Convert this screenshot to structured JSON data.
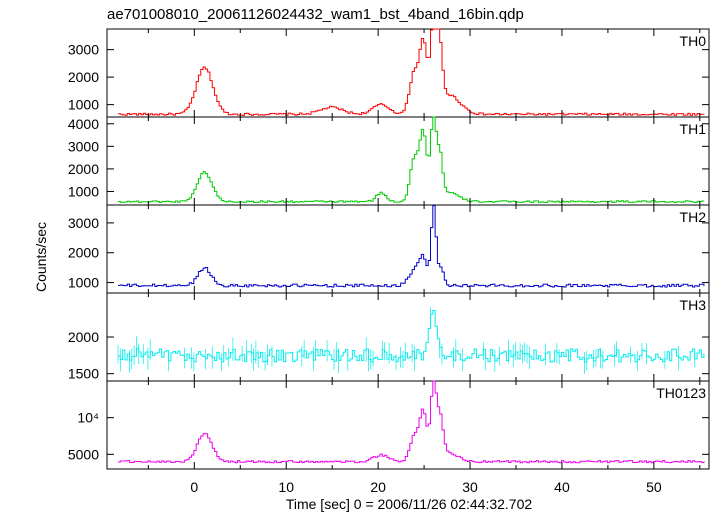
{
  "chart_data": {
    "type": "line",
    "title": "ae701008010_20061126024432_wam1_bst_4band_16bin.qdp",
    "xlabel": "Time [sec] 0 = 2006/11/26 02:44:32.702",
    "ylabel": "Counts/sec",
    "xlim": [
      -9.5,
      56
    ],
    "x_ticks": [
      0,
      10,
      20,
      30,
      40,
      50
    ],
    "x_tick_labels": [
      "0",
      "10",
      "20",
      "30",
      "40",
      "50"
    ],
    "grid": false,
    "panels": [
      {
        "name": "TH0",
        "color": "#ff0000",
        "ylim": [
          550,
          3750
        ],
        "y_ticks": [
          1000,
          2000,
          3000
        ],
        "y_tick_labels": [
          "1000",
          "2000",
          "3000"
        ],
        "baseline": 650,
        "noise": 40,
        "pulses": [
          [
            1.0,
            0.9,
            1700
          ],
          [
            14.8,
            1.2,
            250
          ],
          [
            20.2,
            0.9,
            350
          ],
          [
            23.8,
            0.5,
            1500
          ],
          [
            24.8,
            0.4,
            2500
          ],
          [
            25.9,
            0.35,
            2900
          ],
          [
            26.5,
            0.35,
            2200
          ],
          [
            27.6,
            1.2,
            700
          ]
        ]
      },
      {
        "name": "TH1",
        "color": "#00cc00",
        "ylim": [
          400,
          4300
        ],
        "y_ticks": [
          1000,
          2000,
          3000,
          4000
        ],
        "y_tick_labels": [
          "1000",
          "2000",
          "3000",
          "4000"
        ],
        "baseline": 550,
        "noise": 40,
        "pulses": [
          [
            1.0,
            0.8,
            1300
          ],
          [
            20.2,
            0.5,
            400
          ],
          [
            23.8,
            0.45,
            1900
          ],
          [
            24.8,
            0.4,
            3000
          ],
          [
            25.9,
            0.3,
            3600
          ],
          [
            26.6,
            0.3,
            1900
          ],
          [
            27.6,
            1.0,
            400
          ]
        ]
      },
      {
        "name": "TH2",
        "color": "#0000cc",
        "ylim": [
          650,
          3600
        ],
        "y_ticks": [
          1000,
          2000,
          3000
        ],
        "y_tick_labels": [
          "1000",
          "2000",
          "3000"
        ],
        "baseline": 900,
        "noise": 50,
        "pulses": [
          [
            1.0,
            0.7,
            600
          ],
          [
            23.8,
            0.6,
            500
          ],
          [
            24.8,
            0.45,
            900
          ],
          [
            25.9,
            0.25,
            2500
          ],
          [
            26.6,
            0.4,
            600
          ]
        ]
      },
      {
        "name": "TH3",
        "color": "#00eeee",
        "ylim": [
          1400,
          2600
        ],
        "y_ticks": [
          1500,
          2000
        ],
        "y_tick_labels": [
          "1500",
          "2000"
        ],
        "baseline": 1750,
        "noise": 90,
        "pulses": [
          [
            25.9,
            0.4,
            600
          ]
        ]
      },
      {
        "name": "TH0123",
        "color": "#ee00ee",
        "ylim": [
          3000,
          15000
        ],
        "y_ticks": [
          5000,
          10000
        ],
        "y_tick_labels": [
          "5000",
          "10⁴"
        ],
        "baseline": 4000,
        "noise": 150,
        "pulses": [
          [
            1.0,
            0.8,
            3800
          ],
          [
            20.2,
            0.8,
            900
          ],
          [
            23.8,
            0.45,
            3500
          ],
          [
            24.8,
            0.4,
            6800
          ],
          [
            25.9,
            0.3,
            10000
          ],
          [
            26.6,
            0.35,
            5500
          ],
          [
            27.6,
            1.0,
            1200
          ]
        ]
      }
    ]
  }
}
